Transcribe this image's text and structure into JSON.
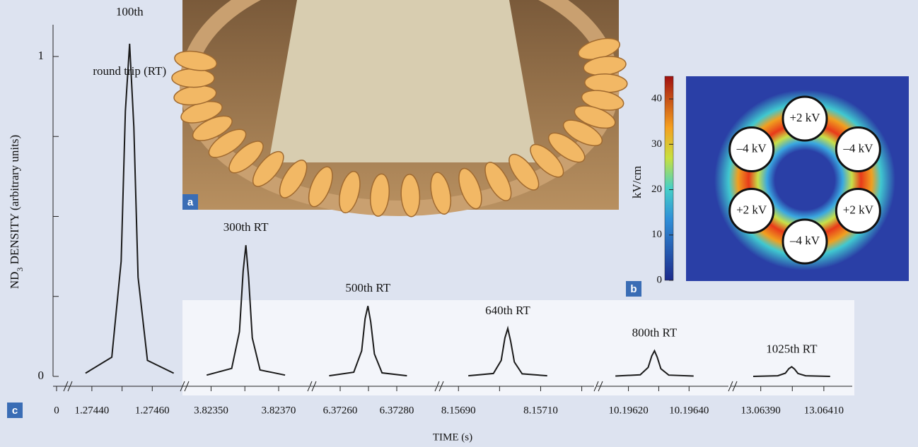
{
  "panels": {
    "a": "a",
    "b": "b",
    "c": "c"
  },
  "chart_data": {
    "type": "line",
    "ylabel": [
      "ND",
      "3",
      " DENSITY (arbitrary units)"
    ],
    "xlabel": "TIME (s)",
    "ylim": [
      0,
      1.08
    ],
    "yticks": [
      0,
      1
    ],
    "yminorticks": [
      0.25,
      0.5,
      0.75
    ],
    "x_start_tick": 0,
    "color": "#1a1a1a",
    "segments": [
      {
        "xlim": [
          1.27433,
          1.2747
        ],
        "xticks": [
          {
            "value": 1.2744,
            "label": "1.27440"
          },
          {
            "value": 1.2746,
            "label": "1.27460"
          }
        ],
        "xminorticks": [
          1.2745
        ],
        "name": [
          "100th",
          "round trip (RT)"
        ],
        "x": [
          1.274379,
          1.274466,
          1.274497,
          1.274511,
          1.274525,
          1.274539,
          1.274553,
          1.274584,
          1.274671
        ],
        "values": [
          0.01,
          0.06,
          0.36,
          0.83,
          1.04,
          0.78,
          0.31,
          0.05,
          0.01
        ]
      },
      {
        "xlim": [
          3.82343,
          3.82379
        ],
        "xticks": [
          {
            "value": 3.8235,
            "label": "3.82350"
          },
          {
            "value": 3.8237,
            "label": "3.82370"
          }
        ],
        "xminorticks": [
          3.8236
        ],
        "name": [
          "300th RT"
        ],
        "x": [
          3.823487,
          3.823561,
          3.823584,
          3.823595,
          3.823603,
          3.823611,
          3.823622,
          3.823645,
          3.823719
        ],
        "values": [
          0.004,
          0.025,
          0.14,
          0.33,
          0.41,
          0.31,
          0.12,
          0.02,
          0.004
        ]
      },
      {
        "xlim": [
          6.37251,
          6.37294
        ],
        "xticks": [
          {
            "value": 6.3726,
            "label": "6.37260"
          },
          {
            "value": 6.3728,
            "label": "6.37280"
          }
        ],
        "xminorticks": [
          6.3727
        ],
        "name": [
          "500th RT"
        ],
        "x": [
          6.372561,
          6.372648,
          6.372676,
          6.372688,
          6.372698,
          6.372708,
          6.372721,
          6.372748,
          6.372836
        ],
        "values": [
          0.002,
          0.013,
          0.08,
          0.18,
          0.22,
          0.17,
          0.07,
          0.011,
          0.002
        ]
      },
      {
        "xlim": [
          8.15686,
          8.15723
        ],
        "xticks": [
          {
            "value": 8.1569,
            "label": "8.15690"
          },
          {
            "value": 8.1571,
            "label": "8.15710"
          }
        ],
        "xminorticks": [
          8.157,
          8.1572
        ],
        "name": [
          "640th RT"
        ],
        "x": [
          8.156924,
          8.156985,
          8.157004,
          8.157013,
          8.15702,
          8.157027,
          8.157036,
          8.157055,
          8.157116
        ],
        "values": [
          0.002,
          0.009,
          0.05,
          0.12,
          0.15,
          0.11,
          0.045,
          0.008,
          0.002
        ]
      },
      {
        "xlim": [
          10.19611,
          10.19653
        ],
        "xticks": [
          {
            "value": 10.1962,
            "label": "10.19620"
          },
          {
            "value": 10.1964,
            "label": "10.19640"
          }
        ],
        "xminorticks": [
          10.1963
        ],
        "name": [
          "800th RT"
        ],
        "x": [
          10.196157,
          10.196239,
          10.196265,
          10.196277,
          10.196286,
          10.196295,
          10.196307,
          10.196333,
          10.196415
        ],
        "values": [
          0.001,
          0.005,
          0.028,
          0.064,
          0.08,
          0.06,
          0.024,
          0.004,
          0.001
        ]
      },
      {
        "xlim": [
          13.06382,
          13.06419
        ],
        "xticks": [
          {
            "value": 13.0639,
            "label": "13.06390"
          },
          {
            "value": 13.0641,
            "label": "13.06410"
          }
        ],
        "xminorticks": [
          13.064
        ],
        "name": [
          "1025th RT"
        ],
        "x": [
          13.063876,
          13.063954,
          13.063978,
          13.063989,
          13.063998,
          13.064007,
          13.064018,
          13.064042,
          13.06412
        ],
        "values": [
          0,
          0.002,
          0.01,
          0.024,
          0.03,
          0.023,
          0.009,
          0.002,
          0
        ]
      }
    ]
  },
  "field_map": {
    "colorbar_label": "kV/cm",
    "lim": [
      0,
      45
    ],
    "ticks": [
      0,
      10,
      20,
      30,
      40
    ],
    "electrodes": [
      "+2 kV",
      "–4 kV",
      "+2 kV",
      "–4 kV",
      "+2 kV",
      "–4 kV"
    ]
  }
}
